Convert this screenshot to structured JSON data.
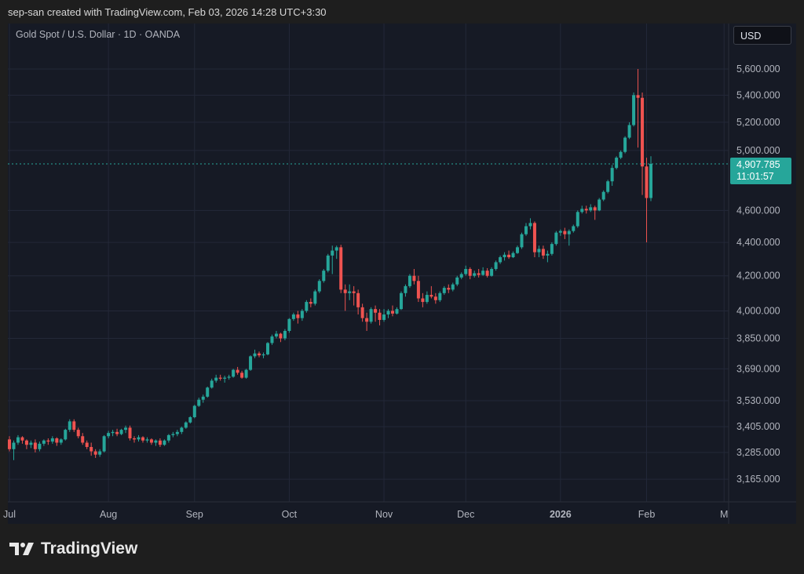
{
  "credit": "sep-san created with TradingView.com, Feb 03, 2026 14:28 UTC+3:30",
  "symbol": "Gold Spot / U.S. Dollar · 1D · OANDA",
  "currency_button": "USD",
  "last_price": "4,907.785",
  "countdown": "11:01:57",
  "logo_text": "TradingView",
  "colors": {
    "up": "#26a69a",
    "down": "#ef5350",
    "background": "#161a25",
    "grid": "#232838"
  },
  "chart_data": {
    "type": "candlestick",
    "scale": "log",
    "grid": true,
    "ylim": [
      3110,
      5700
    ],
    "y_ticks": [
      "5,600.000",
      "5,400.000",
      "5,200.000",
      "5,000.000",
      "4,600.000",
      "4,400.000",
      "4,200.000",
      "4,000.000",
      "3,850.000",
      "3,690.000",
      "3,530.000",
      "3,405.000",
      "3,285.000",
      "3,165.000"
    ],
    "y_tick_values": [
      5600,
      5400,
      5200,
      5000,
      4600,
      4400,
      4200,
      4000,
      3850,
      3690,
      3530,
      3405,
      3285,
      3165
    ],
    "x_ticks": [
      {
        "label": "Jul",
        "bar": 0
      },
      {
        "label": "Aug",
        "bar": 23
      },
      {
        "label": "Sep",
        "bar": 43
      },
      {
        "label": "Oct",
        "bar": 65
      },
      {
        "label": "Nov",
        "bar": 87
      },
      {
        "label": "Dec",
        "bar": 106
      },
      {
        "label": "2026",
        "bar": 128
      },
      {
        "label": "Feb",
        "bar": 148
      },
      {
        "label": "M",
        "bar": 166
      }
    ],
    "last_value": 4907.785,
    "candles_ohlc": [
      [
        3345,
        3360,
        3290,
        3300
      ],
      [
        3300,
        3340,
        3250,
        3330
      ],
      [
        3330,
        3365,
        3320,
        3355
      ],
      [
        3355,
        3360,
        3325,
        3340
      ],
      [
        3340,
        3345,
        3300,
        3320
      ],
      [
        3320,
        3340,
        3305,
        3330
      ],
      [
        3330,
        3345,
        3285,
        3300
      ],
      [
        3300,
        3335,
        3290,
        3325
      ],
      [
        3325,
        3345,
        3315,
        3340
      ],
      [
        3340,
        3350,
        3320,
        3335
      ],
      [
        3335,
        3360,
        3325,
        3350
      ],
      [
        3350,
        3355,
        3315,
        3330
      ],
      [
        3330,
        3350,
        3320,
        3345
      ],
      [
        3345,
        3395,
        3340,
        3390
      ],
      [
        3390,
        3440,
        3380,
        3430
      ],
      [
        3430,
        3440,
        3380,
        3390
      ],
      [
        3390,
        3400,
        3350,
        3360
      ],
      [
        3360,
        3375,
        3320,
        3330
      ],
      [
        3330,
        3340,
        3300,
        3310
      ],
      [
        3310,
        3330,
        3270,
        3290
      ],
      [
        3290,
        3300,
        3260,
        3275
      ],
      [
        3275,
        3300,
        3265,
        3290
      ],
      [
        3290,
        3365,
        3285,
        3360
      ],
      [
        3360,
        3385,
        3350,
        3375
      ],
      [
        3375,
        3390,
        3360,
        3380
      ],
      [
        3380,
        3395,
        3360,
        3370
      ],
      [
        3370,
        3395,
        3365,
        3390
      ],
      [
        3390,
        3410,
        3375,
        3400
      ],
      [
        3400,
        3410,
        3340,
        3350
      ],
      [
        3350,
        3360,
        3330,
        3345
      ],
      [
        3345,
        3365,
        3335,
        3355
      ],
      [
        3355,
        3360,
        3330,
        3340
      ],
      [
        3340,
        3355,
        3330,
        3345
      ],
      [
        3345,
        3350,
        3320,
        3330
      ],
      [
        3330,
        3345,
        3315,
        3340
      ],
      [
        3340,
        3350,
        3310,
        3320
      ],
      [
        3320,
        3345,
        3315,
        3340
      ],
      [
        3340,
        3370,
        3330,
        3365
      ],
      [
        3365,
        3380,
        3355,
        3370
      ],
      [
        3370,
        3390,
        3360,
        3380
      ],
      [
        3380,
        3405,
        3370,
        3400
      ],
      [
        3400,
        3430,
        3395,
        3425
      ],
      [
        3425,
        3455,
        3420,
        3450
      ],
      [
        3450,
        3510,
        3445,
        3505
      ],
      [
        3505,
        3545,
        3500,
        3535
      ],
      [
        3535,
        3560,
        3520,
        3550
      ],
      [
        3550,
        3600,
        3545,
        3595
      ],
      [
        3595,
        3640,
        3590,
        3630
      ],
      [
        3630,
        3660,
        3620,
        3645
      ],
      [
        3645,
        3660,
        3630,
        3640
      ],
      [
        3640,
        3655,
        3620,
        3645
      ],
      [
        3645,
        3660,
        3635,
        3650
      ],
      [
        3650,
        3690,
        3645,
        3685
      ],
      [
        3685,
        3700,
        3660,
        3670
      ],
      [
        3670,
        3680,
        3640,
        3645
      ],
      [
        3645,
        3690,
        3640,
        3685
      ],
      [
        3685,
        3760,
        3680,
        3755
      ],
      [
        3755,
        3790,
        3745,
        3770
      ],
      [
        3770,
        3780,
        3750,
        3760
      ],
      [
        3760,
        3775,
        3745,
        3765
      ],
      [
        3765,
        3830,
        3760,
        3825
      ],
      [
        3825,
        3870,
        3815,
        3860
      ],
      [
        3860,
        3890,
        3850,
        3875
      ],
      [
        3875,
        3880,
        3830,
        3850
      ],
      [
        3850,
        3900,
        3840,
        3890
      ],
      [
        3890,
        3960,
        3880,
        3955
      ],
      [
        3955,
        3990,
        3945,
        3980
      ],
      [
        3980,
        4000,
        3930,
        3960
      ],
      [
        3960,
        4010,
        3945,
        4000
      ],
      [
        4000,
        4060,
        3990,
        4050
      ],
      [
        4050,
        4070,
        4020,
        4040
      ],
      [
        4040,
        4120,
        4030,
        4110
      ],
      [
        4110,
        4180,
        4100,
        4170
      ],
      [
        4170,
        4240,
        4160,
        4230
      ],
      [
        4230,
        4330,
        4220,
        4320
      ],
      [
        4320,
        4380,
        4210,
        4350
      ],
      [
        4350,
        4380,
        4300,
        4370
      ],
      [
        4370,
        4385,
        4100,
        4120
      ],
      [
        4120,
        4150,
        4000,
        4100
      ],
      [
        4100,
        4150,
        4060,
        4110
      ],
      [
        4110,
        4140,
        4030,
        4100
      ],
      [
        4100,
        4120,
        3980,
        4020
      ],
      [
        4020,
        4040,
        3940,
        3960
      ],
      [
        3960,
        3990,
        3890,
        3940
      ],
      [
        3940,
        4020,
        3930,
        4010
      ],
      [
        4010,
        4030,
        3940,
        3990
      ],
      [
        3990,
        4010,
        3920,
        3950
      ],
      [
        3950,
        4010,
        3940,
        3980
      ],
      [
        3980,
        4010,
        3960,
        4000
      ],
      [
        4000,
        4030,
        3970,
        3985
      ],
      [
        3985,
        4020,
        3980,
        4010
      ],
      [
        4010,
        4110,
        4005,
        4100
      ],
      [
        4100,
        4150,
        4080,
        4140
      ],
      [
        4140,
        4210,
        4130,
        4200
      ],
      [
        4200,
        4240,
        4150,
        4170
      ],
      [
        4170,
        4200,
        4050,
        4070
      ],
      [
        4070,
        4100,
        4020,
        4050
      ],
      [
        4050,
        4110,
        4040,
        4090
      ],
      [
        4090,
        4140,
        4070,
        4080
      ],
      [
        4080,
        4100,
        4040,
        4060
      ],
      [
        4060,
        4110,
        4050,
        4100
      ],
      [
        4100,
        4140,
        4090,
        4130
      ],
      [
        4130,
        4150,
        4100,
        4120
      ],
      [
        4120,
        4160,
        4110,
        4150
      ],
      [
        4150,
        4200,
        4140,
        4190
      ],
      [
        4190,
        4220,
        4180,
        4210
      ],
      [
        4210,
        4260,
        4200,
        4240
      ],
      [
        4240,
        4250,
        4180,
        4200
      ],
      [
        4200,
        4230,
        4190,
        4215
      ],
      [
        4215,
        4240,
        4190,
        4205
      ],
      [
        4205,
        4250,
        4200,
        4230
      ],
      [
        4230,
        4245,
        4190,
        4200
      ],
      [
        4200,
        4250,
        4195,
        4240
      ],
      [
        4240,
        4290,
        4230,
        4280
      ],
      [
        4280,
        4320,
        4270,
        4310
      ],
      [
        4310,
        4340,
        4290,
        4325
      ],
      [
        4325,
        4350,
        4300,
        4310
      ],
      [
        4310,
        4345,
        4305,
        4335
      ],
      [
        4335,
        4380,
        4330,
        4370
      ],
      [
        4370,
        4460,
        4360,
        4450
      ],
      [
        4450,
        4520,
        4440,
        4500
      ],
      [
        4500,
        4550,
        4480,
        4520
      ],
      [
        4520,
        4530,
        4310,
        4340
      ],
      [
        4340,
        4380,
        4310,
        4360
      ],
      [
        4360,
        4380,
        4300,
        4320
      ],
      [
        4320,
        4350,
        4280,
        4330
      ],
      [
        4330,
        4400,
        4320,
        4390
      ],
      [
        4390,
        4470,
        4380,
        4460
      ],
      [
        4460,
        4480,
        4440,
        4470
      ],
      [
        4470,
        4490,
        4420,
        4450
      ],
      [
        4450,
        4480,
        4380,
        4470
      ],
      [
        4470,
        4510,
        4460,
        4500
      ],
      [
        4500,
        4600,
        4490,
        4590
      ],
      [
        4590,
        4630,
        4580,
        4610
      ],
      [
        4610,
        4630,
        4580,
        4600
      ],
      [
        4600,
        4640,
        4590,
        4620
      ],
      [
        4620,
        4630,
        4540,
        4600
      ],
      [
        4600,
        4680,
        4595,
        4670
      ],
      [
        4670,
        4730,
        4660,
        4720
      ],
      [
        4720,
        4800,
        4710,
        4790
      ],
      [
        4790,
        4900,
        4760,
        4880
      ],
      [
        4880,
        4960,
        4870,
        4950
      ],
      [
        4950,
        5000,
        4940,
        4990
      ],
      [
        4990,
        5100,
        4980,
        5090
      ],
      [
        5090,
        5200,
        5080,
        5180
      ],
      [
        5180,
        5420,
        5170,
        5400
      ],
      [
        5400,
        5600,
        5020,
        5380
      ],
      [
        5380,
        5420,
        4700,
        4890
      ],
      [
        4890,
        4950,
        4400,
        4680
      ],
      [
        4680,
        4960,
        4660,
        4907.785
      ]
    ]
  }
}
